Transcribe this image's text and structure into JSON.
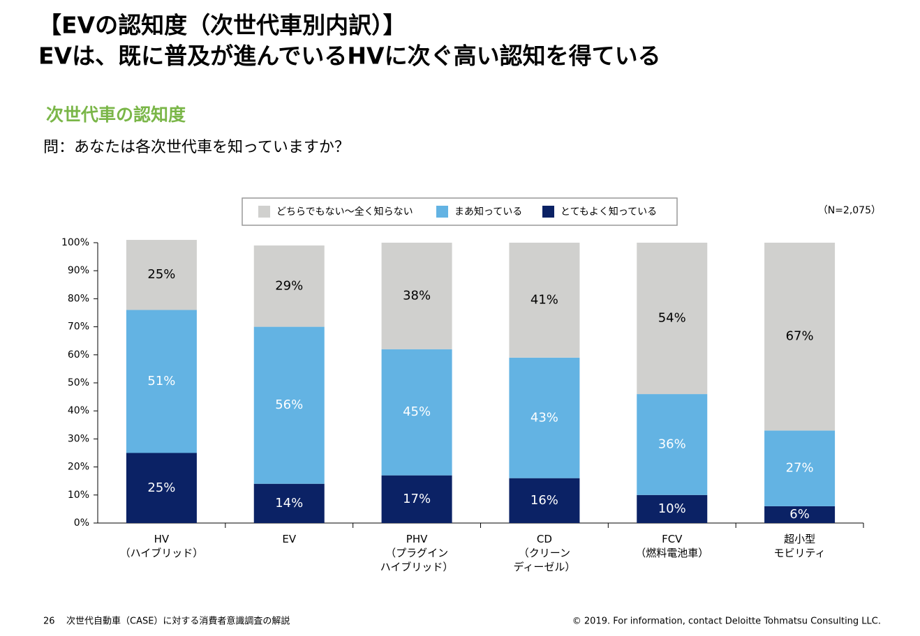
{
  "header": {
    "title": [
      "【EVの認知度（次世代車別内訳）】",
      "EVは、既に普及が進んでいるHVに次ぐ高い認知を得ている"
    ]
  },
  "chart_data": {
    "type": "stacked_bar",
    "title": "次世代車の認知度",
    "subtitle": "問：あなたは各次世代車を知っていますか？",
    "note": "（N=2,075）",
    "categories": [
      "HV\n（ハイブリッド）",
      "EV",
      "PHV\n（プラグイン\nハイブリッド）",
      "CD\n（クリーン\nディーゼル）",
      "FCV\n（燃料電池車）",
      "超小型\nモビリティ"
    ],
    "series": [
      {
        "name": "とてもよく知っている",
        "color": "#0b2265",
        "label_color": "#ffffff",
        "values": [
          25,
          14,
          17,
          16,
          10,
          6
        ],
        "value_labels": [
          "25%",
          "14%",
          "17%",
          "16%",
          "10%",
          "6%"
        ]
      },
      {
        "name": "まあ知っている",
        "color": "#63b3e3",
        "label_color": "#ffffff",
        "values": [
          51,
          56,
          45,
          43,
          36,
          27
        ],
        "value_labels": [
          "51%",
          "56%",
          "45%",
          "43%",
          "36%",
          "27%"
        ]
      },
      {
        "name": "どちらでもない～全く知らない",
        "color": "#d0d0ce",
        "label_color": "#000000",
        "values": [
          25,
          29,
          38,
          41,
          54,
          67
        ],
        "value_labels": [
          "25%",
          "29%",
          "38%",
          "41%",
          "54%",
          "67%"
        ]
      }
    ],
    "ylim": [
      0,
      100
    ],
    "yticks": [
      {
        "value": 0,
        "label": "0%"
      },
      {
        "value": 10,
        "label": "10%"
      },
      {
        "value": 20,
        "label": "20%"
      },
      {
        "value": 30,
        "label": "30%"
      },
      {
        "value": 40,
        "label": "40%"
      },
      {
        "value": 50,
        "label": "50%"
      },
      {
        "value": 60,
        "label": "60%"
      },
      {
        "value": 70,
        "label": "70%"
      },
      {
        "value": 80,
        "label": "80%"
      },
      {
        "value": 90,
        "label": "90%"
      },
      {
        "value": 100,
        "label": "100%"
      }
    ],
    "legend": "top"
  },
  "footer": {
    "page": "26",
    "doc": "次世代自動車（CASE）に対する消費者意識調査の解説",
    "copyright": "© 2019. For information, contact Deloitte Tohmatsu Consulting LLC."
  }
}
